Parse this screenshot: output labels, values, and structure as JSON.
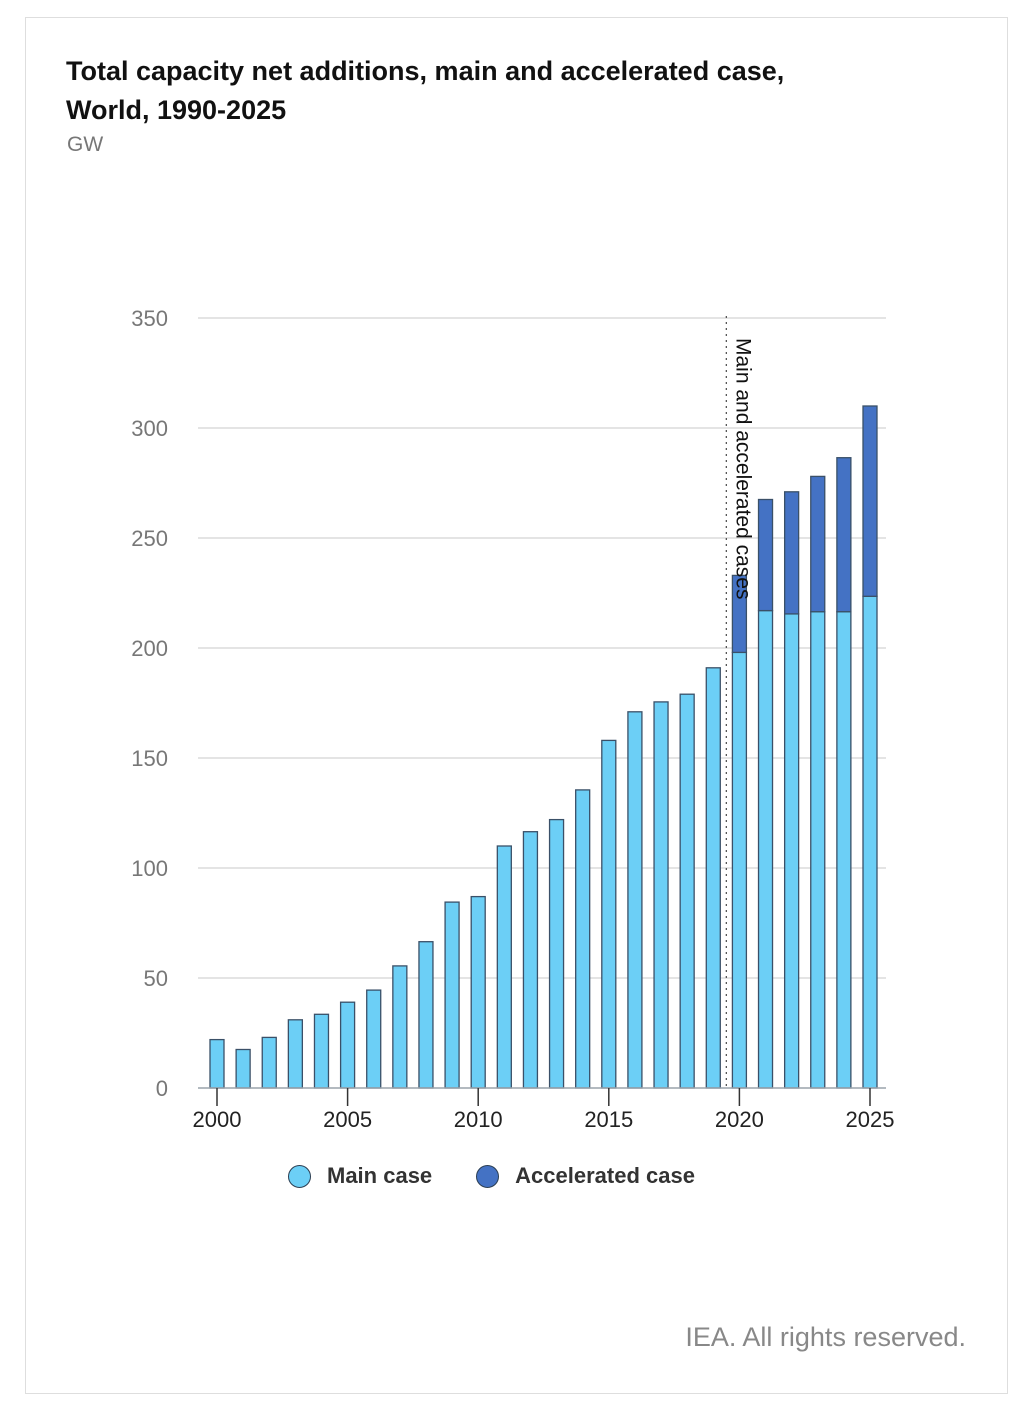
{
  "chart_data": {
    "type": "bar",
    "stacked": true,
    "title": "Total capacity net additions, main and accelerated case, World, 1990-2025",
    "unit": "GW",
    "x": [
      2000,
      2001,
      2002,
      2003,
      2004,
      2005,
      2006,
      2007,
      2008,
      2009,
      2010,
      2011,
      2012,
      2013,
      2014,
      2015,
      2016,
      2017,
      2018,
      2019,
      2020,
      2021,
      2022,
      2023,
      2024,
      2025
    ],
    "series": [
      {
        "name": "Main case",
        "color": "#6ccff6",
        "values": [
          22,
          17.5,
          23,
          31,
          33.5,
          39,
          44.5,
          55.5,
          66.5,
          84.5,
          87,
          110,
          116.5,
          122,
          135.5,
          158,
          171,
          175.5,
          179,
          191,
          198,
          217,
          215.5,
          216.5,
          216.5,
          223.5
        ]
      },
      {
        "name": "Accelerated case",
        "color": "#4472c4",
        "values": [
          0,
          0,
          0,
          0,
          0,
          0,
          0,
          0,
          0,
          0,
          0,
          0,
          0,
          0,
          0,
          0,
          0,
          0,
          0,
          0,
          35,
          50.5,
          55.5,
          61.5,
          70,
          86.5
        ]
      }
    ],
    "ylim": [
      0,
      350
    ],
    "yticks": [
      0,
      50,
      100,
      150,
      200,
      250,
      300,
      350
    ],
    "xticks": [
      2000,
      2005,
      2010,
      2015,
      2020,
      2025
    ],
    "grid": true,
    "annotation": {
      "text": "Main and accelerated cases",
      "x": 2019.5
    },
    "legend_position": "bottom"
  },
  "credit": "IEA. All rights reserved."
}
